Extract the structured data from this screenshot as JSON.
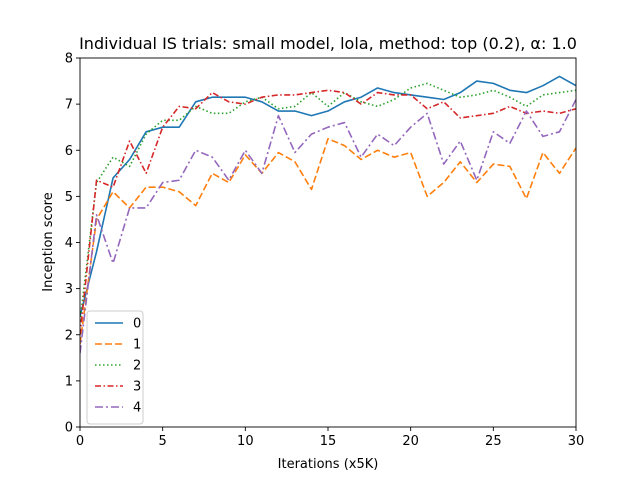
{
  "chart_data": {
    "type": "line",
    "title": "Individual IS trials: small model, lola, method: top (0.2), α: 1.0",
    "xlabel": "Iterations (x5K)",
    "ylabel": "Inception score",
    "xlim": [
      0,
      30
    ],
    "ylim": [
      0,
      8
    ],
    "xticks": [
      0,
      5,
      10,
      15,
      20,
      25,
      30
    ],
    "yticks": [
      0,
      1,
      2,
      3,
      4,
      5,
      6,
      7,
      8
    ],
    "grid": false,
    "legend_position": "lower-left",
    "x": [
      0,
      1,
      2,
      3,
      4,
      5,
      6,
      7,
      8,
      9,
      10,
      11,
      12,
      13,
      14,
      15,
      16,
      17,
      18,
      19,
      20,
      21,
      22,
      23,
      24,
      25,
      26,
      27,
      28,
      29,
      30
    ],
    "series": [
      {
        "name": "0",
        "color": "#1f77b4",
        "dash": "solid",
        "values": [
          2.4,
          3.8,
          5.4,
          5.8,
          6.4,
          6.5,
          6.5,
          7.05,
          7.15,
          7.15,
          7.15,
          7.05,
          6.85,
          6.85,
          6.75,
          6.85,
          7.05,
          7.15,
          7.35,
          7.25,
          7.2,
          7.15,
          7.1,
          7.25,
          7.5,
          7.45,
          7.3,
          7.25,
          7.4,
          7.6,
          7.4
        ]
      },
      {
        "name": "1",
        "color": "#ff7f0e",
        "dash": "dashed",
        "values": [
          1.8,
          4.5,
          5.1,
          4.75,
          5.2,
          5.2,
          5.1,
          4.8,
          5.5,
          5.3,
          5.9,
          5.5,
          5.95,
          5.75,
          5.15,
          6.25,
          6.1,
          5.8,
          6.0,
          5.85,
          5.95,
          5.0,
          5.3,
          5.75,
          5.3,
          5.7,
          5.65,
          4.95,
          5.95,
          5.5,
          6.05
        ]
      },
      {
        "name": "2",
        "color": "#2ca02c",
        "dash": "dotted",
        "values": [
          2.3,
          5.3,
          5.85,
          5.65,
          6.35,
          6.65,
          6.65,
          6.95,
          6.8,
          6.8,
          7.05,
          7.15,
          6.9,
          6.95,
          7.25,
          6.95,
          7.25,
          7.05,
          6.95,
          7.1,
          7.35,
          7.45,
          7.3,
          7.15,
          7.2,
          7.3,
          7.15,
          6.95,
          7.2,
          7.25,
          7.3
        ]
      },
      {
        "name": "3",
        "color": "#d62728",
        "dash": "dashdot",
        "values": [
          2.0,
          5.35,
          5.2,
          6.2,
          5.5,
          6.5,
          6.95,
          6.9,
          7.25,
          7.05,
          7.0,
          7.15,
          7.2,
          7.2,
          7.25,
          7.3,
          7.25,
          7.0,
          7.25,
          7.2,
          7.2,
          6.9,
          7.05,
          6.7,
          6.75,
          6.8,
          6.95,
          6.8,
          6.85,
          6.8,
          6.9
        ]
      },
      {
        "name": "4",
        "color": "#9467bd",
        "dash": "dashdotalt",
        "values": [
          1.6,
          4.6,
          3.55,
          4.75,
          4.75,
          5.3,
          5.35,
          6.0,
          5.85,
          5.35,
          6.0,
          5.5,
          6.75,
          5.95,
          6.35,
          6.5,
          6.6,
          5.85,
          6.35,
          6.1,
          6.5,
          6.8,
          5.7,
          6.2,
          5.35,
          6.4,
          6.15,
          6.85,
          6.3,
          6.4,
          7.1
        ]
      }
    ]
  }
}
